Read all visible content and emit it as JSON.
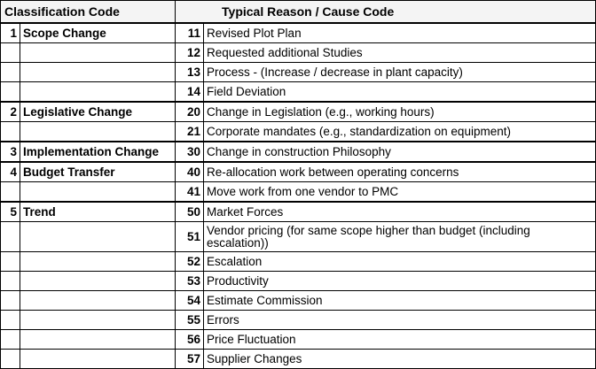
{
  "header": [
    "Classification Code",
    "Typical Reason / Cause Code"
  ],
  "groups": [
    {
      "code": 1,
      "name": "Scope Change",
      "reasons": [
        {
          "code": 11,
          "text": "Revised Plot Plan"
        },
        {
          "code": 12,
          "text": "Requested additional Studies"
        },
        {
          "code": 13,
          "text": "Process - (Increase / decrease in plant capacity)"
        },
        {
          "code": 14,
          "text": "Field Deviation"
        }
      ]
    },
    {
      "code": 2,
      "name": "Legislative Change",
      "reasons": [
        {
          "code": 20,
          "text": "Change in Legislation (e.g., working hours)"
        },
        {
          "code": 21,
          "text": "Corporate mandates (e.g., standardization on equipment)"
        }
      ]
    },
    {
      "code": 3,
      "name": "Implementation Change",
      "reasons": [
        {
          "code": 30,
          "text": "Change in construction Philosophy"
        }
      ]
    },
    {
      "code": 4,
      "name": "Budget Transfer",
      "reasons": [
        {
          "code": 40,
          "text": "Re-allocation work between operating concerns"
        },
        {
          "code": 41,
          "text": "Move work from one vendor to PMC"
        }
      ]
    },
    {
      "code": 5,
      "name": "Trend",
      "reasons": [
        {
          "code": 50,
          "text": "Market Forces"
        },
        {
          "code": 51,
          "text": "Vendor pricing (for same scope higher than budget (including escalation))"
        },
        {
          "code": 52,
          "text": "Escalation"
        },
        {
          "code": 53,
          "text": "Productivity"
        },
        {
          "code": 54,
          "text": "Estimate Commission"
        },
        {
          "code": 55,
          "text": "Errors"
        },
        {
          "code": 56,
          "text": "Price Fluctuation"
        },
        {
          "code": 57,
          "text": "Supplier Changes"
        }
      ]
    }
  ]
}
